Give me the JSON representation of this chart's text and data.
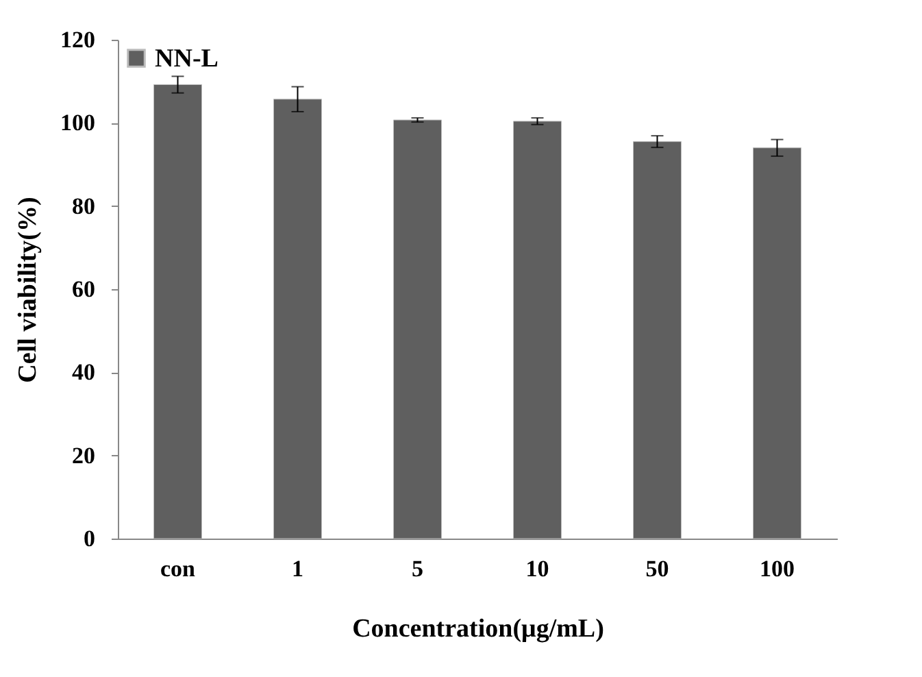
{
  "chart_data": {
    "type": "bar",
    "xlabel": "Concentration(μg/mL)",
    "ylabel": "Cell viability(%)",
    "categories": [
      "con",
      "1",
      "5",
      "10",
      "50",
      "100"
    ],
    "series": [
      {
        "name": "NN-L",
        "color": "#5f5f5f",
        "values": [
          109.2,
          105.7,
          100.7,
          100.4,
          95.5,
          94
        ],
        "errors": [
          2,
          3,
          0.5,
          0.8,
          1.4,
          2
        ]
      }
    ],
    "ylim": [
      0,
      120
    ],
    "yticks": [
      0,
      20,
      40,
      60,
      80,
      100,
      120
    ],
    "grid": false,
    "legend": "top left"
  }
}
